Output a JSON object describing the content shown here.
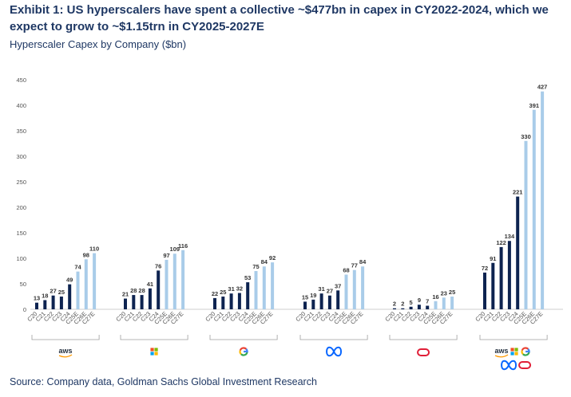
{
  "title": "Exhibit 1: US hyperscalers have spent a collective ~$477bn in capex in CY2022-2024, which we expect to grow to ~$1.15trn in CY2025-2027E",
  "subtitle": "Hyperscaler Capex by Company ($bn)",
  "source": "Source: Company data, Goldman Sachs Global Investment Research",
  "colors": {
    "actual": "#0d2350",
    "estimate": "#a9cce9",
    "aws": "#232f3e",
    "aws_smile": "#ff9900",
    "meta": "#0866ff",
    "oracle": "#e01e37"
  },
  "chart_data": {
    "type": "bar",
    "title": "Hyperscaler Capex by Company ($bn)",
    "ylabel": "",
    "xlabel": "",
    "ylim": [
      0,
      450
    ],
    "yticks": [
      0,
      50,
      100,
      150,
      200,
      250,
      300,
      350,
      400,
      450
    ],
    "categories": [
      "C20",
      "C21",
      "C22",
      "C23",
      "C24",
      "C25E",
      "C26E",
      "C27E"
    ],
    "actual_count": 5,
    "groups": [
      {
        "name": "Amazon",
        "logo": "aws",
        "values": [
          13,
          18,
          27,
          25,
          49,
          74,
          98,
          110
        ]
      },
      {
        "name": "Microsoft",
        "logo": "microsoft",
        "values": [
          21,
          28,
          28,
          41,
          76,
          97,
          109,
          116
        ]
      },
      {
        "name": "Google",
        "logo": "google",
        "values": [
          22,
          25,
          31,
          32,
          53,
          75,
          84,
          92
        ]
      },
      {
        "name": "Meta",
        "logo": "meta",
        "values": [
          15,
          19,
          31,
          27,
          37,
          68,
          77,
          84
        ]
      },
      {
        "name": "Oracle",
        "logo": "oracle",
        "values": [
          2,
          2,
          5,
          9,
          7,
          16,
          23,
          25
        ]
      },
      {
        "name": "Total",
        "logo": "all",
        "values": [
          72,
          91,
          122,
          134,
          221,
          330,
          391,
          427
        ]
      }
    ]
  }
}
